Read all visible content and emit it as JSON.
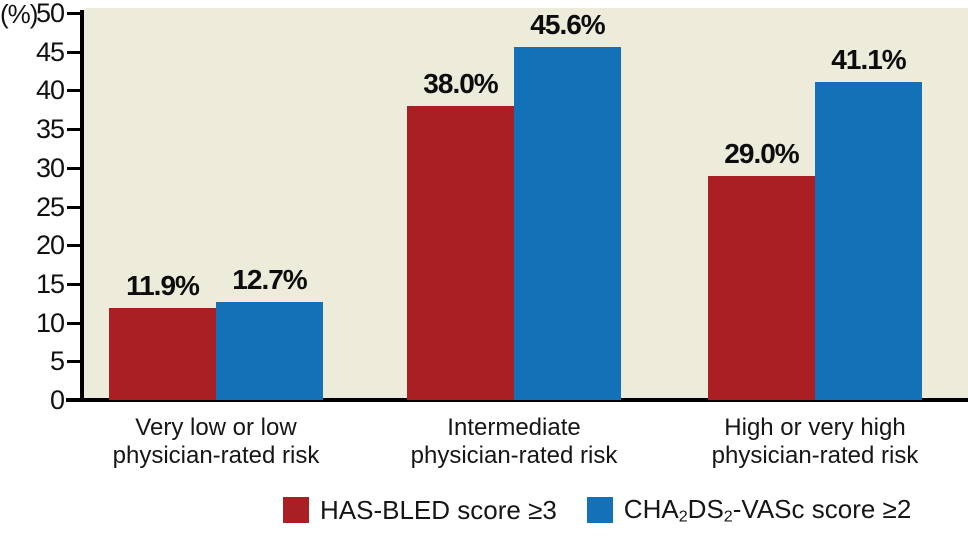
{
  "figure": {
    "background": "#ffffff",
    "plot_background": "#edebda",
    "axis_color": "#000000",
    "text_color": "#111111"
  },
  "chart_data": {
    "type": "bar",
    "title": "",
    "xlabel": "",
    "ylabel": "(%)",
    "ylim": [
      0,
      50
    ],
    "yticks": [
      0,
      5,
      10,
      15,
      20,
      25,
      30,
      35,
      40,
      45,
      50
    ],
    "grid": false,
    "legend_position": "bottom",
    "categories": [
      [
        "Very low or low",
        "physician-rated risk"
      ],
      [
        "Intermediate",
        "physician-rated risk"
      ],
      [
        "High or very high",
        "physician-rated risk"
      ]
    ],
    "series": [
      {
        "name": "HAS-BLED score ≥3",
        "color": "#a91f23",
        "values": [
          11.9,
          38.0,
          29.0
        ],
        "labels": [
          "11.9%",
          "38.0%",
          "29.0%"
        ],
        "legend_parts": [
          {
            "t": "HAS-BLED score ≥3",
            "sub": false
          }
        ]
      },
      {
        "name": "CHA2DS2-VASc score ≥2",
        "color": "#1372b7",
        "values": [
          12.7,
          45.6,
          41.1
        ],
        "labels": [
          "12.7%",
          "45.6%",
          "41.1%"
        ],
        "legend_parts": [
          {
            "t": "CHA",
            "sub": false
          },
          {
            "t": "2",
            "sub": true
          },
          {
            "t": "DS",
            "sub": false
          },
          {
            "t": "2",
            "sub": true
          },
          {
            "t": "-VASc score ≥2",
            "sub": false
          }
        ]
      }
    ]
  }
}
